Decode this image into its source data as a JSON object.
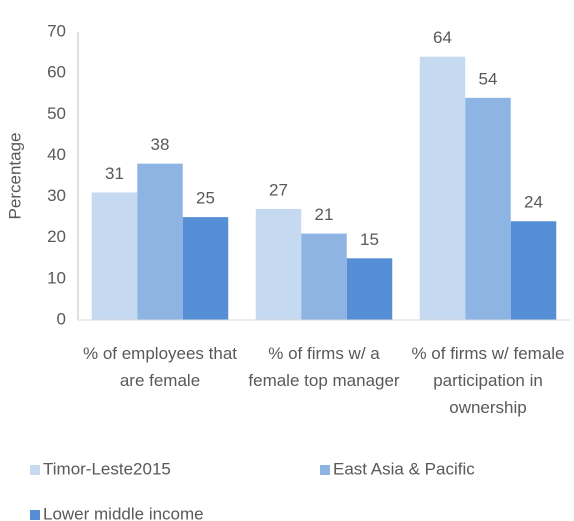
{
  "chart_data": {
    "type": "bar",
    "y_label": "Percentage",
    "categories": [
      "% of employees that are female",
      "% of firms w/ a female top manager",
      "% of firms w/ female participation in ownership"
    ],
    "series": [
      {
        "name": "Timor-Leste2015",
        "color": "#c5d9f1",
        "values": [
          31,
          27,
          64
        ]
      },
      {
        "name": "East Asia & Pacific",
        "color": "#8eb4e3",
        "values": [
          38,
          21,
          54
        ]
      },
      {
        "name": "Lower middle income",
        "color": "#558ed5",
        "values": [
          25,
          15,
          24
        ]
      }
    ],
    "ylim": [
      0,
      70
    ],
    "yticks": [
      0,
      10,
      20,
      30,
      40,
      50,
      60,
      70
    ],
    "grid": false,
    "legend": "bottom"
  }
}
